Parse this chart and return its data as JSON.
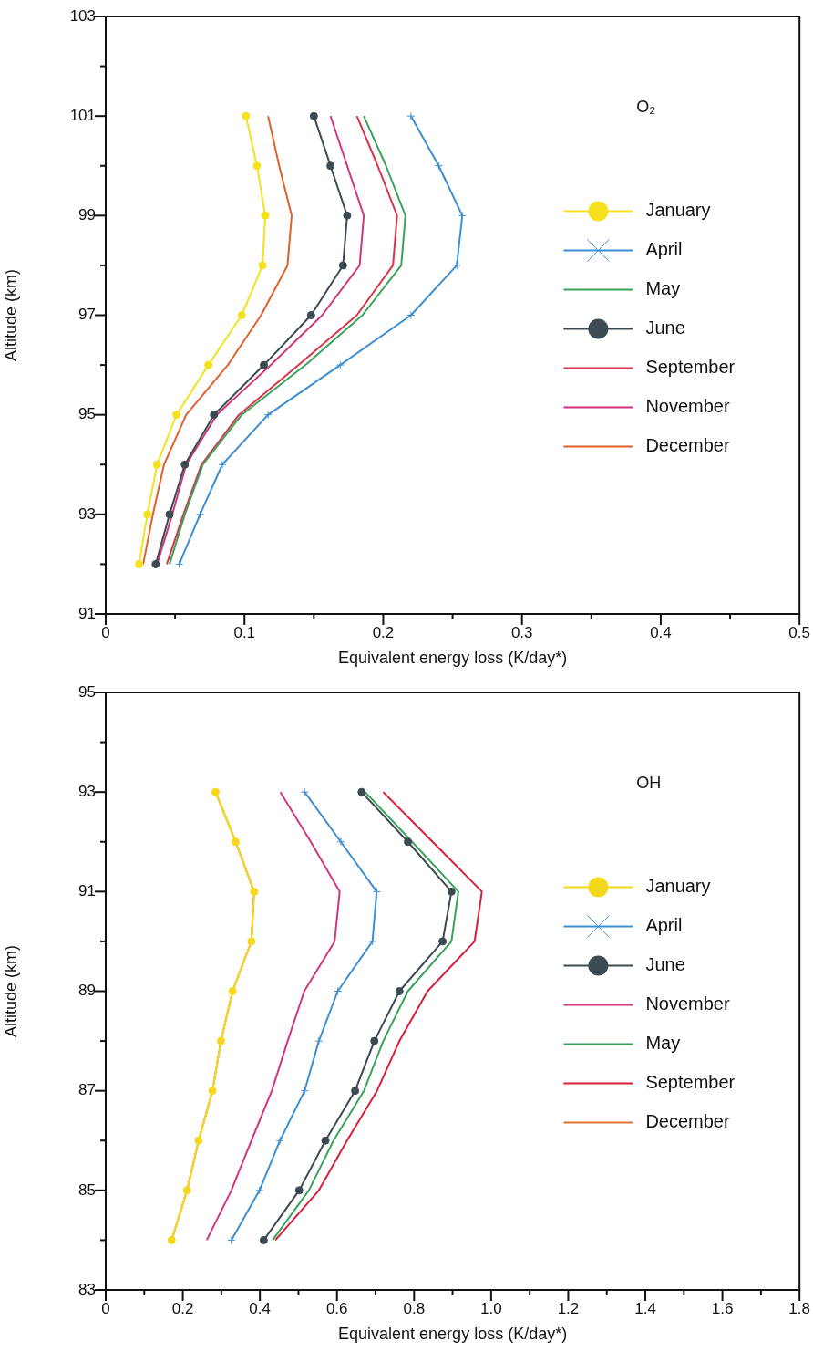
{
  "chart_data": [
    {
      "type": "line",
      "orientation": "horizontal",
      "xlabel": "Equivalent energy loss (K/day*)",
      "ylabel": "Altitude (km)",
      "annotations": [
        "O₂"
      ],
      "legend": "right",
      "grid": false,
      "x": [
        101,
        100,
        99,
        98,
        97,
        96,
        95,
        94,
        93,
        92
      ],
      "xlim": [
        0,
        0.5
      ],
      "xticks": [
        0,
        {
          "value": 0.05,
          "label": null
        },
        0.1,
        {
          "value": 0.15,
          "label": null
        },
        0.2,
        {
          "value": 0.25,
          "label": null
        },
        0.3,
        {
          "value": 0.35,
          "label": null
        },
        0.4,
        {
          "value": 0.45,
          "label": null
        },
        0.5
      ],
      "ylim": [
        91,
        103
      ],
      "yticks": [
        91,
        {
          "value": 92,
          "label": null
        },
        93,
        {
          "value": 94,
          "label": null
        },
        95,
        {
          "value": 96,
          "label": null
        },
        97,
        {
          "value": 98,
          "label": null
        },
        99,
        {
          "value": 100,
          "label": null
        },
        101,
        {
          "value": 102,
          "label": null
        },
        103
      ],
      "series": [
        {
          "name": "January",
          "color": "#f5e11c",
          "marker": "circle",
          "values": [
            0.101,
            0.109,
            0.115,
            0.113,
            0.098,
            0.074,
            0.051,
            0.037,
            0.03,
            0.024
          ]
        },
        {
          "name": "April",
          "color": "#3d8fd1",
          "marker": "cross",
          "values": [
            0.22,
            0.24,
            0.257,
            0.253,
            0.22,
            0.169,
            0.117,
            0.084,
            0.068,
            0.053
          ]
        },
        {
          "name": "May",
          "color": "#3aa35a",
          "marker": "none",
          "values": [
            0.186,
            0.202,
            0.216,
            0.213,
            0.185,
            0.144,
            0.098,
            0.07,
            0.057,
            0.046
          ]
        },
        {
          "name": "June",
          "color": "#3c4a52",
          "marker": "circle",
          "values": [
            0.15,
            0.162,
            0.174,
            0.171,
            0.148,
            0.114,
            0.078,
            0.057,
            0.046,
            0.036
          ]
        },
        {
          "name": "September",
          "color": "#d9344a",
          "marker": "none",
          "values": [
            0.181,
            0.196,
            0.21,
            0.207,
            0.181,
            0.139,
            0.096,
            0.069,
            0.056,
            0.044
          ]
        },
        {
          "name": "November",
          "color": "#d2377e",
          "marker": "none",
          "values": [
            0.162,
            0.174,
            0.186,
            0.183,
            0.156,
            0.119,
            0.08,
            0.058,
            0.048,
            0.037
          ]
        },
        {
          "name": "December",
          "color": "#e0602e",
          "marker": "none",
          "values": [
            0.117,
            0.125,
            0.134,
            0.131,
            0.112,
            0.088,
            0.058,
            0.042,
            0.034,
            0.027
          ]
        }
      ]
    },
    {
      "type": "line",
      "orientation": "horizontal",
      "xlabel": "Equivalent energy loss (K/day*)",
      "ylabel": "Altitude (km)",
      "annotations": [
        "OH"
      ],
      "legend": "right",
      "grid": false,
      "x": [
        93,
        92,
        91,
        90,
        89,
        88,
        87,
        86,
        85,
        84
      ],
      "xlim": [
        0,
        1.8
      ],
      "xticks": [
        0,
        {
          "value": 0.1,
          "label": null
        },
        0.2,
        {
          "value": 0.3,
          "label": null
        },
        0.4,
        {
          "value": 0.5,
          "label": null
        },
        0.6,
        {
          "value": 0.7,
          "label": null
        },
        0.8,
        {
          "value": 0.9,
          "label": null
        },
        {
          "value": 1,
          "label": "1.0"
        },
        {
          "value": 1.1,
          "label": null
        },
        1.2,
        {
          "value": 1.3,
          "label": null
        },
        1.4,
        {
          "value": 1.5,
          "label": null
        },
        1.6,
        {
          "value": 1.7,
          "label": null
        },
        1.8
      ],
      "ylim": [
        83,
        95
      ],
      "yticks": [
        83,
        {
          "value": 84,
          "label": null
        },
        85,
        {
          "value": 86,
          "label": null
        },
        87,
        {
          "value": 88,
          "label": null
        },
        89,
        {
          "value": 90,
          "label": null
        },
        91,
        {
          "value": 92,
          "label": null
        },
        93,
        {
          "value": 94,
          "label": null
        },
        95
      ],
      "series": [
        {
          "name": "January",
          "color": "#f5d81c",
          "marker": "circle",
          "values": [
            0.285,
            0.337,
            0.385,
            0.378,
            0.329,
            0.299,
            0.277,
            0.241,
            0.211,
            0.171
          ]
        },
        {
          "name": "April",
          "color": "#3d8fd1",
          "marker": "cross",
          "values": [
            0.516,
            0.61,
            0.703,
            0.692,
            0.602,
            0.553,
            0.516,
            0.452,
            0.399,
            0.326
          ]
        },
        {
          "name": "June",
          "color": "#3c4a52",
          "marker": "circle",
          "values": [
            0.664,
            0.784,
            0.897,
            0.874,
            0.762,
            0.697,
            0.647,
            0.57,
            0.502,
            0.41
          ]
        },
        {
          "name": "November",
          "color": "#d2377e",
          "marker": "none",
          "values": [
            0.453,
            0.532,
            0.607,
            0.594,
            0.515,
            0.472,
            0.431,
            0.378,
            0.326,
            0.262
          ]
        },
        {
          "name": "May",
          "color": "#3aa35a",
          "marker": "none",
          "values": [
            0.673,
            0.795,
            0.915,
            0.897,
            0.784,
            0.72,
            0.67,
            0.591,
            0.527,
            0.433
          ]
        },
        {
          "name": "September",
          "color": "#d81e3c",
          "marker": "none",
          "values": [
            0.72,
            0.848,
            0.976,
            0.957,
            0.835,
            0.762,
            0.704,
            0.626,
            0.553,
            0.44
          ]
        },
        {
          "name": "December",
          "color": "#e0782e",
          "marker": "none",
          "values": [
            0.285,
            0.337,
            0.385,
            0.378,
            0.329,
            0.299,
            0.277,
            0.241,
            0.211,
            0.171
          ]
        }
      ]
    }
  ]
}
